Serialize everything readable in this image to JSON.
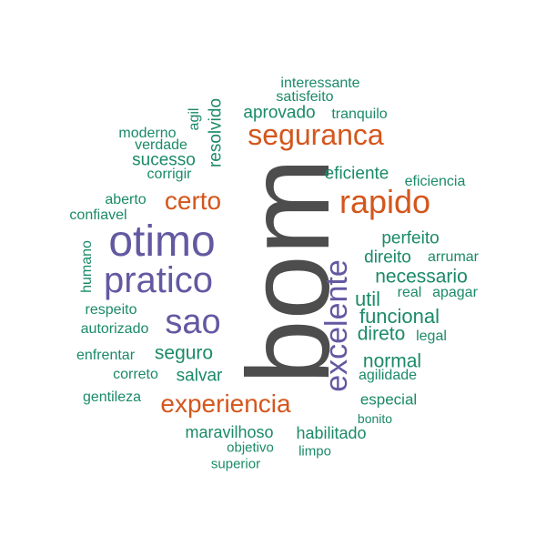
{
  "colors": {
    "gray": "#4d4d4d",
    "purple": "#6359a1",
    "orange": "#d4561c",
    "green": "#1b8a68"
  },
  "words": [
    {
      "id": "bom",
      "text": "bom",
      "color": "gray",
      "vertical": true
    },
    {
      "id": "otimo",
      "text": "otimo",
      "color": "purple"
    },
    {
      "id": "pratico",
      "text": "pratico",
      "color": "purple"
    },
    {
      "id": "sao",
      "text": "sao",
      "color": "purple"
    },
    {
      "id": "excelente",
      "text": "excelente",
      "color": "purple",
      "vertical": true
    },
    {
      "id": "rapido",
      "text": "rapido",
      "color": "orange"
    },
    {
      "id": "seguranca",
      "text": "seguranca",
      "color": "orange"
    },
    {
      "id": "certo",
      "text": "certo",
      "color": "orange"
    },
    {
      "id": "experiencia",
      "text": "experiencia",
      "color": "orange"
    },
    {
      "id": "interessante",
      "text": "interessante",
      "color": "green"
    },
    {
      "id": "satisfeito",
      "text": "satisfeito",
      "color": "green"
    },
    {
      "id": "aprovado",
      "text": "aprovado",
      "color": "green"
    },
    {
      "id": "tranquilo",
      "text": "tranquilo",
      "color": "green"
    },
    {
      "id": "resolvido",
      "text": "resolvido",
      "color": "green",
      "vertical": true
    },
    {
      "id": "agil",
      "text": "agil",
      "color": "green",
      "vertical": true
    },
    {
      "id": "moderno",
      "text": "moderno",
      "color": "green"
    },
    {
      "id": "verdade",
      "text": "verdade",
      "color": "green"
    },
    {
      "id": "sucesso",
      "text": "sucesso",
      "color": "green"
    },
    {
      "id": "corrigir",
      "text": "corrigir",
      "color": "green"
    },
    {
      "id": "eficiente",
      "text": "eficiente",
      "color": "green"
    },
    {
      "id": "eficiencia",
      "text": "eficiencia",
      "color": "green"
    },
    {
      "id": "aberto",
      "text": "aberto",
      "color": "green"
    },
    {
      "id": "confiavel",
      "text": "confiavel",
      "color": "green"
    },
    {
      "id": "humano",
      "text": "humano",
      "color": "green",
      "vertical": true
    },
    {
      "id": "perfeito",
      "text": "perfeito",
      "color": "green"
    },
    {
      "id": "direito",
      "text": "direito",
      "color": "green"
    },
    {
      "id": "arrumar",
      "text": "arrumar",
      "color": "green"
    },
    {
      "id": "necessario",
      "text": "necessario",
      "color": "green"
    },
    {
      "id": "util",
      "text": "util",
      "color": "green"
    },
    {
      "id": "real",
      "text": "real",
      "color": "green"
    },
    {
      "id": "apagar",
      "text": "apagar",
      "color": "green"
    },
    {
      "id": "respeito",
      "text": "respeito",
      "color": "green"
    },
    {
      "id": "autorizado",
      "text": "autorizado",
      "color": "green"
    },
    {
      "id": "funcional",
      "text": "funcional",
      "color": "green"
    },
    {
      "id": "direto",
      "text": "direto",
      "color": "green"
    },
    {
      "id": "legal",
      "text": "legal",
      "color": "green"
    },
    {
      "id": "enfrentar",
      "text": "enfrentar",
      "color": "green"
    },
    {
      "id": "seguro",
      "text": "seguro",
      "color": "green"
    },
    {
      "id": "normal",
      "text": "normal",
      "color": "green"
    },
    {
      "id": "correto",
      "text": "correto",
      "color": "green"
    },
    {
      "id": "salvar",
      "text": "salvar",
      "color": "green"
    },
    {
      "id": "agilidade",
      "text": "agilidade",
      "color": "green"
    },
    {
      "id": "gentileza",
      "text": "gentileza",
      "color": "green"
    },
    {
      "id": "especial",
      "text": "especial",
      "color": "green"
    },
    {
      "id": "bonito",
      "text": "bonito",
      "color": "green"
    },
    {
      "id": "maravilhoso",
      "text": "maravilhoso",
      "color": "green"
    },
    {
      "id": "habilitado",
      "text": "habilitado",
      "color": "green"
    },
    {
      "id": "objetivo",
      "text": "objetivo",
      "color": "green"
    },
    {
      "id": "limpo",
      "text": "limpo",
      "color": "green"
    },
    {
      "id": "superior",
      "text": "superior",
      "color": "green"
    }
  ]
}
